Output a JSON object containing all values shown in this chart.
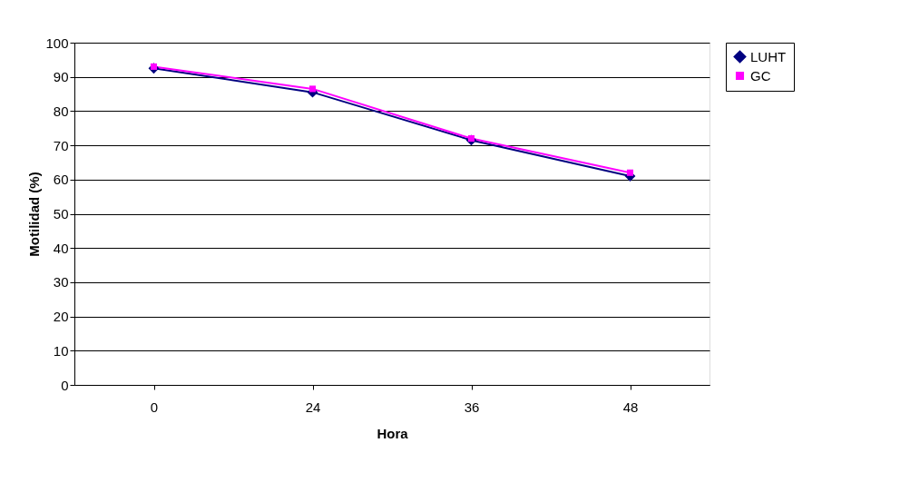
{
  "chart_data": {
    "type": "line",
    "xlabel": "Hora",
    "ylabel": "Motilidad (%)",
    "categories": [
      "0",
      "24",
      "36",
      "48"
    ],
    "series": [
      {
        "name": "LUHT",
        "color": "#000080",
        "marker": "diamond",
        "values": [
          92.5,
          85.5,
          71.5,
          61
        ]
      },
      {
        "name": "GC",
        "color": "#ff00ff",
        "marker": "square",
        "values": [
          93,
          86.5,
          72,
          62
        ]
      }
    ],
    "ylim": [
      0,
      100
    ],
    "yticks": [
      0,
      10,
      20,
      30,
      40,
      50,
      60,
      70,
      80,
      90,
      100
    ],
    "grid": "y",
    "legend": "right",
    "line_style": "solid"
  }
}
